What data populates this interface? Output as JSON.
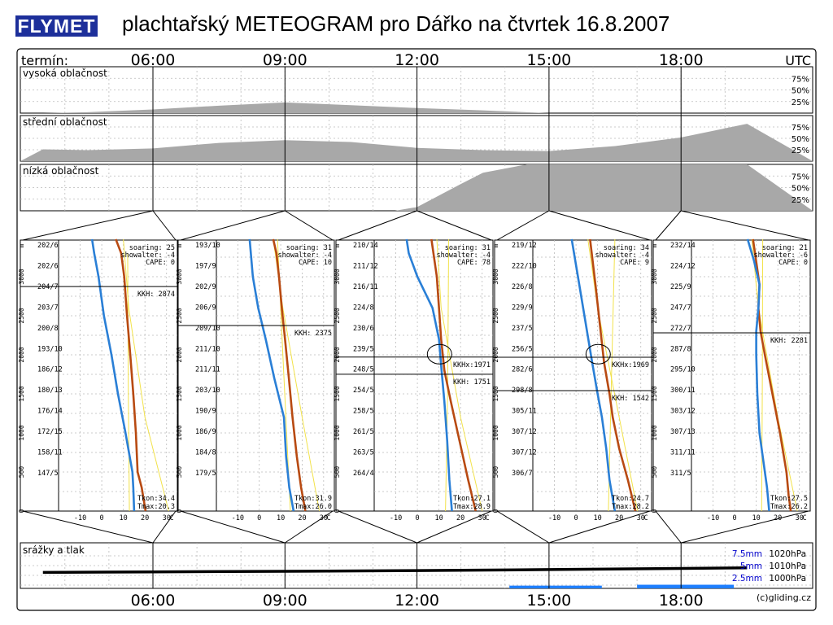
{
  "header": {
    "logo_text": "FLYMET",
    "title": "plachtařský METEOGRAM pro Dářko na čtvrtek 16.8.2007"
  },
  "time_axis": {
    "label": "termín:",
    "unit": "UTC",
    "ticks": [
      "06:00",
      "09:00",
      "12:00",
      "15:00",
      "18:00"
    ],
    "footer_credit": "(c)gliding.cz"
  },
  "colors": {
    "cloud_fill": "#a8a8a8",
    "dewpoint_line": "#2a7fd6",
    "temperature_line": "#b84a12",
    "adiabat_line": "#f2e24a",
    "precip_bar": "#1e7fff",
    "logo_bg": "#1d2f9a",
    "legend_text": "#0000cc"
  },
  "chart_data": [
    {
      "type": "area",
      "name": "high-cloud",
      "title": "vysoká oblačnost",
      "x_unit": "hour UTC",
      "x": [
        3.5,
        4.5,
        6,
        7.5,
        9,
        10.5,
        12,
        13.5,
        15,
        16.5,
        18,
        19.5
      ],
      "values": [
        0,
        2,
        8,
        16,
        23,
        17,
        11,
        6,
        0,
        0,
        0,
        0
      ],
      "y_ticks": [
        "75%",
        "50%",
        "25%"
      ],
      "ylim": [
        0,
        100
      ]
    },
    {
      "type": "area",
      "name": "mid-cloud",
      "title": "střední oblačnost",
      "x_unit": "hour UTC",
      "x": [
        3.5,
        4.5,
        6,
        7.5,
        9,
        10.5,
        12,
        13.5,
        15,
        16.5,
        18,
        19.5
      ],
      "values": [
        26,
        24,
        28,
        40,
        46,
        42,
        29,
        24,
        22,
        33,
        52,
        82
      ],
      "y_ticks": [
        "75%",
        "50%",
        "25%"
      ],
      "ylim": [
        0,
        100
      ]
    },
    {
      "type": "area",
      "name": "low-cloud",
      "title": "nízká oblačnost",
      "x_unit": "hour UTC",
      "x": [
        3.5,
        11.5,
        12,
        13,
        13.5,
        14.5,
        15,
        16,
        17,
        18,
        19.5
      ],
      "values": [
        0,
        0,
        8,
        58,
        82,
        100,
        100,
        100,
        100,
        100,
        100
      ],
      "y_ticks": [
        "75%",
        "50%",
        "25%"
      ],
      "ylim": [
        0,
        100
      ]
    },
    {
      "type": "line",
      "name": "sounding-0600",
      "time": "06:00",
      "xlabel": "C",
      "ylabel": "m",
      "x_ticks": [
        "-10",
        "0",
        "10",
        "20",
        "30"
      ],
      "y_ticks": [
        "0",
        "500",
        "1000",
        "1500",
        "2000",
        "2500",
        "3000"
      ],
      "xlim": [
        -20,
        35
      ],
      "ylim": [
        0,
        3300
      ],
      "soaring": "soaring: 25",
      "showalter": "showalter: -4",
      "cape": "CAPE:  0",
      "kkh_labels": [
        "KKH: 2874"
      ],
      "kkh_heights": [
        2874
      ],
      "tkon": "Tkon:34.4",
      "tmax": "Tmax:20.3",
      "wind_labels": [
        "202/6",
        "202/6",
        "204/7",
        "203/7",
        "200/8",
        "193/10",
        "186/12",
        "180/13",
        "176/14",
        "172/15",
        "158/11",
        "147/5"
      ],
      "temperature": {
        "x": [
          20.3,
          18.5,
          16.6,
          15.8,
          14.6,
          13.2,
          11.7,
          10.4,
          9.0,
          6.5
        ],
        "y": [
          0,
          300,
          500,
          1000,
          1500,
          2000,
          2500,
          3000,
          3300,
          3480
        ]
      },
      "dewpoint": {
        "x": [
          15.0,
          14.6,
          14.2,
          11.0,
          7.5,
          4.5,
          1.0,
          -1.5,
          -3.5,
          -4.5
        ],
        "y": [
          0,
          300,
          500,
          1000,
          1500,
          2000,
          2500,
          3000,
          3300,
          3480
        ]
      },
      "adiabats": [
        {
          "x": [
            10.0,
            12.5,
            20.0,
            31.0
          ],
          "y": [
            3480,
            2600,
            1200,
            0
          ]
        },
        {
          "x": [
            12.0,
            12.3,
            12.8
          ],
          "y": [
            3300,
            1500,
            0
          ]
        }
      ]
    },
    {
      "type": "line",
      "name": "sounding-0900",
      "time": "09:00",
      "xlabel": "C",
      "ylabel": "m",
      "x_ticks": [
        "-10",
        "0",
        "10",
        "20",
        "30"
      ],
      "y_ticks": [
        "0",
        "500",
        "1000",
        "1500",
        "2000",
        "2500",
        "3000"
      ],
      "xlim": [
        -20,
        35
      ],
      "ylim": [
        0,
        3300
      ],
      "soaring": "soaring: 31",
      "showalter": "showalter: -4",
      "cape": "CAPE: 10",
      "kkh_labels": [
        "KKH: 2375"
      ],
      "kkh_heights": [
        2375
      ],
      "tkon": "Tkon:31.9",
      "tmax": "Tmax:26.0",
      "wind_labels": [
        "193/10",
        "197/9",
        "202/9",
        "206/9",
        "209/10",
        "211/10",
        "211/11",
        "203/10",
        "190/9",
        "186/9",
        "184/8",
        "179/5"
      ],
      "temperature": {
        "x": [
          21.5,
          19.5,
          17.5,
          15.5,
          13.8,
          12.0,
          10.5,
          9.2,
          8.0,
          6.5
        ],
        "y": [
          0,
          300,
          700,
          1200,
          1700,
          2200,
          2600,
          3000,
          3300,
          3480
        ]
      },
      "dewpoint": {
        "x": [
          16.0,
          14.0,
          12.5,
          11.5,
          7.0,
          3.0,
          -0.5,
          -3.0,
          -4.5
        ],
        "y": [
          0,
          300,
          700,
          1200,
          1700,
          2200,
          2600,
          3000,
          3480
        ]
      },
      "adiabats": [
        {
          "x": [
            6.5,
            11.0,
            20.0,
            28.0
          ],
          "y": [
            3480,
            2600,
            1200,
            0
          ]
        },
        {
          "x": [
            8.5,
            11.0,
            14.5
          ],
          "y": [
            3480,
            2000,
            0
          ]
        }
      ]
    },
    {
      "type": "line",
      "name": "sounding-1200",
      "time": "12:00",
      "xlabel": "C",
      "ylabel": "m",
      "x_ticks": [
        "-10",
        "0",
        "10",
        "20",
        "30"
      ],
      "y_ticks": [
        "0",
        "500",
        "1000",
        "1500",
        "2000",
        "2500",
        "3000"
      ],
      "xlim": [
        -20,
        35
      ],
      "ylim": [
        0,
        3300
      ],
      "soaring": "soaring: 31",
      "showalter": "showalter: -4",
      "cape": "CAPE: 78",
      "kkh_labels": [
        "KKHx:1971",
        "KKH: 1751"
      ],
      "kkh_heights": [
        1971,
        1751
      ],
      "tkon": "Tkon:27.1",
      "tmax": "Tmax:28.9",
      "wind_labels": [
        "210/14",
        "211/12",
        "216/11",
        "224/8",
        "230/6",
        "239/5",
        "248/5",
        "254/5",
        "258/5",
        "261/5",
        "263/5",
        "264/4"
      ],
      "temperature": {
        "x": [
          27.0,
          23.5,
          19.5,
          15.5,
          12.5,
          11.0,
          10.0,
          9.0,
          6.5
        ],
        "y": [
          0,
          400,
          900,
          1400,
          1800,
          2200,
          2600,
          3000,
          3480
        ]
      },
      "dewpoint": {
        "x": [
          16.0,
          14.8,
          13.8,
          12.5,
          11.2,
          10.0,
          7.0,
          0.0,
          -4.0,
          -5.0
        ],
        "y": [
          0,
          400,
          900,
          1400,
          1800,
          2200,
          2600,
          3000,
          3300,
          3480
        ]
      },
      "adiabats": [
        {
          "x": [
            9.0,
            11.0,
            20.0,
            30.0
          ],
          "y": [
            3480,
            2600,
            1200,
            0
          ]
        },
        {
          "x": [
            14.5,
            14.0,
            13.0
          ],
          "y": [
            3480,
            1500,
            0
          ]
        }
      ],
      "cloud_ellipse": {
        "x": 11.0,
        "y": 2050
      }
    },
    {
      "type": "line",
      "name": "sounding-1500",
      "time": "15:00",
      "xlabel": "C",
      "ylabel": "m",
      "x_ticks": [
        "-10",
        "0",
        "10",
        "20",
        "30"
      ],
      "y_ticks": [
        "0",
        "500",
        "1000",
        "1500",
        "2000",
        "2500",
        "3000"
      ],
      "xlim": [
        -20,
        35
      ],
      "ylim": [
        0,
        3300
      ],
      "soaring": "soaring: 34",
      "showalter": "showalter: -4",
      "cape": "CAPE:  9",
      "kkh_labels": [
        "KKHx:1969",
        "KKH: 1542"
      ],
      "kkh_heights": [
        1969,
        1542
      ],
      "tkon": "Tkon:24.7",
      "tmax": "Tmax:28.2",
      "wind_labels": [
        "219/12",
        "222/10",
        "226/8",
        "229/9",
        "237/5",
        "256/5",
        "282/6",
        "298/8",
        "305/11",
        "307/12",
        "307/12",
        "306/7"
      ],
      "temperature": {
        "x": [
          27.5,
          24.0,
          20.0,
          17.0,
          15.5,
          13.0,
          11.0,
          9.0,
          6.5
        ],
        "y": [
          0,
          400,
          800,
          1200,
          1500,
          1900,
          2400,
          2900,
          3480
        ]
      },
      "dewpoint": {
        "x": [
          18.0,
          15.5,
          14.0,
          12.0,
          10.0,
          7.5,
          4.5,
          1.5,
          -2.0
        ],
        "y": [
          0,
          400,
          800,
          1200,
          1500,
          1900,
          2400,
          2900,
          3480
        ]
      },
      "adiabats": [
        {
          "x": [
            5.5,
            10.0,
            20.0,
            28.5
          ],
          "y": [
            3480,
            2600,
            1200,
            0
          ]
        },
        {
          "x": [
            18.0,
            16.5,
            15.0
          ],
          "y": [
            3480,
            1800,
            0
          ]
        }
      ],
      "cloud_ellipse": {
        "x": 11.0,
        "y": 2050
      }
    },
    {
      "type": "line",
      "name": "sounding-1800",
      "time": "18:00",
      "xlabel": "C",
      "ylabel": "m",
      "x_ticks": [
        "-10",
        "0",
        "10",
        "20",
        "30"
      ],
      "y_ticks": [
        "0",
        "500",
        "1000",
        "1500",
        "2000",
        "2500",
        "3000"
      ],
      "xlim": [
        -20,
        35
      ],
      "ylim": [
        0,
        3300
      ],
      "soaring": "soaring: 21",
      "showalter": "showalter: -6",
      "cape": "CAPE:  0",
      "kkh_labels": [
        "KKH: 2281"
      ],
      "kkh_heights": [
        2281
      ],
      "tkon": "Tkon:27.5",
      "tmax": "Tmax:26.2",
      "wind_labels": [
        "232/14",
        "224/12",
        "225/9",
        "247/7",
        "272/7",
        "287/8",
        "295/10",
        "300/11",
        "303/12",
        "307/13",
        "311/11",
        "311/5"
      ],
      "temperature": {
        "x": [
          26.0,
          25.0,
          24.0,
          21.0,
          17.5,
          14.0,
          12.0,
          11.0,
          11.5,
          8.5
        ],
        "y": [
          0,
          200,
          500,
          1000,
          1500,
          2000,
          2300,
          2600,
          2900,
          3480
        ]
      },
      "dewpoint": {
        "x": [
          16.0,
          15.0,
          13.0,
          11.5,
          10.5,
          10.0,
          10.0,
          11.0,
          11.5,
          9.0,
          6.0
        ],
        "y": [
          0,
          300,
          700,
          1000,
          1500,
          2000,
          2300,
          2600,
          2900,
          3200,
          3480
        ]
      },
      "adiabats": [
        {
          "x": [
            8.0,
            11.0,
            20.0,
            29.0
          ],
          "y": [
            3480,
            2600,
            1200,
            0
          ]
        },
        {
          "x": [
            13.0,
            12.8,
            12.5
          ],
          "y": [
            3480,
            1500,
            0
          ]
        }
      ]
    },
    {
      "type": "line",
      "name": "precipitation-pressure",
      "title": "srážky a tlak",
      "x_unit": "hour UTC",
      "legend_mm": [
        "7.5mm",
        "5mm",
        "2.5mm"
      ],
      "legend_hpa": [
        "1020hPa",
        "1010hPa",
        "1000hPa"
      ],
      "pressure": {
        "x": [
          3.5,
          6,
          9,
          12,
          15,
          18,
          19.5
        ],
        "values": [
          1004.0,
          1004.5,
          1005.0,
          1005.6,
          1006.5,
          1007.5,
          1008.0
        ]
      },
      "precipitation": [
        {
          "from": 14.1,
          "to": 16.2,
          "mm": 0.6
        },
        {
          "from": 17.0,
          "to": 19.2,
          "mm": 0.8
        }
      ],
      "ylim_mm": [
        0,
        10
      ],
      "ylim_hpa": [
        990,
        1030
      ]
    }
  ]
}
